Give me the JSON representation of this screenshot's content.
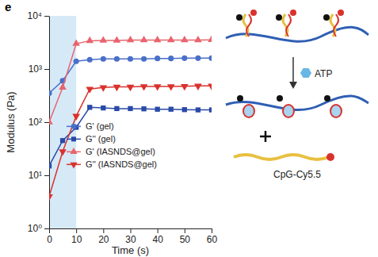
{
  "chart_data": {
    "type": "line",
    "panel_label": "e",
    "x_label": "Time (s)",
    "y_label": "Modulus (Pa)",
    "x": [
      0,
      5,
      10,
      15,
      20,
      25,
      30,
      35,
      40,
      45,
      50,
      55,
      60
    ],
    "series": [
      {
        "name": "G' (gel)",
        "color": "#4a6fc9",
        "marker": "circle",
        "values": [
          350,
          600,
          1400,
          1500,
          1550,
          1550,
          1550,
          1550,
          1580,
          1580,
          1600,
          1600,
          1600
        ]
      },
      {
        "name": "G'' (gel)",
        "color": "#2a4aa8",
        "marker": "square",
        "values": [
          15,
          45,
          80,
          190,
          185,
          180,
          180,
          178,
          175,
          175,
          172,
          170,
          170
        ]
      },
      {
        "name": "G' (IASNDS@gel)",
        "color": "#e8646e",
        "marker": "triangle-up",
        "values": [
          100,
          450,
          3000,
          3400,
          3450,
          3450,
          3500,
          3500,
          3500,
          3500,
          3500,
          3500,
          3550
        ]
      },
      {
        "name": "G'' (IASNDS@gel)",
        "color": "#d9322e",
        "marker": "triangle-down",
        "values": [
          4,
          28,
          130,
          420,
          450,
          460,
          460,
          470,
          470,
          470,
          475,
          480,
          480
        ]
      }
    ],
    "shaded_region": [
      0,
      10
    ],
    "xlim": [
      0,
      60
    ],
    "xticks": [
      0,
      10,
      20,
      30,
      40,
      50,
      60
    ],
    "ylim": [
      1,
      10000
    ],
    "yticks": [
      {
        "value": 1,
        "label": "10⁰"
      },
      {
        "value": 10,
        "label": "10¹"
      },
      {
        "value": 100,
        "label": "10²"
      },
      {
        "value": 1000,
        "label": "10³"
      },
      {
        "value": 10000,
        "label": "10⁴"
      }
    ],
    "log": "y",
    "grid": false,
    "legend": "center left",
    "annotations": [
      "ATP",
      "CpG-Cy5.5"
    ]
  }
}
